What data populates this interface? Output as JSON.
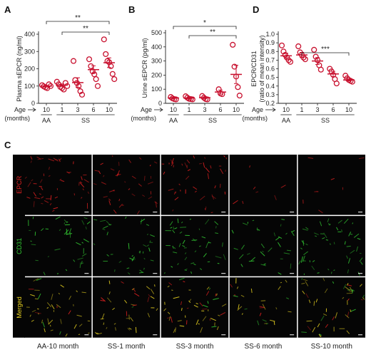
{
  "colors": {
    "marker": "#c8102e",
    "axis": "#222222",
    "epcr": "#e02020",
    "cd31": "#33cc33",
    "merged": "#e6d020",
    "tile_bg": "#050505"
  },
  "panels": {
    "A": "A",
    "B": "B",
    "C": "C",
    "D": "D"
  },
  "age_label": "Age",
  "months_label": "(months)",
  "chart_data": [
    {
      "type": "scatter",
      "panel": "A",
      "ylabel": "Plasma sEPCR (ng/ml)",
      "ylim": [
        0,
        400
      ],
      "yticks": [
        0,
        100,
        200,
        300,
        400
      ],
      "categories": [
        "10",
        "1",
        "3",
        "6",
        "10"
      ],
      "groups": [
        {
          "label": "AA",
          "span": [
            0,
            0
          ]
        },
        {
          "label": "SS",
          "span": [
            1,
            4
          ]
        }
      ],
      "points": [
        [
          105,
          98,
          92,
          88,
          110,
          100
        ],
        [
          125,
          110,
          95,
          88,
          80,
          118,
          100
        ],
        [
          245,
          135,
          118,
          100,
          70,
          50
        ],
        [
          255,
          215,
          185,
          168,
          140,
          100
        ],
        [
          370,
          285,
          245,
          238,
          215,
          170,
          140
        ]
      ],
      "means": [
        100,
        105,
        120,
        195,
        235
      ],
      "sems": [
        4,
        7,
        28,
        22,
        28
      ],
      "significance": [
        {
          "from": 0,
          "to": 4,
          "label": "**"
        },
        {
          "from": 1,
          "to": 4,
          "label": "**"
        }
      ]
    },
    {
      "type": "scatter",
      "panel": "B",
      "ylabel": "Urine sEPCR (pg/ml)",
      "ylim": [
        0,
        500
      ],
      "yticks": [
        0,
        100,
        200,
        300,
        400,
        500
      ],
      "categories": [
        "10",
        "1",
        "3",
        "6",
        "10"
      ],
      "groups": [
        {
          "label": "AA",
          "span": [
            0,
            0
          ]
        },
        {
          "label": "SS",
          "span": [
            1,
            4
          ]
        }
      ],
      "points": [
        [
          45,
          35,
          30,
          28
        ],
        [
          50,
          40,
          32,
          30,
          28
        ],
        [
          52,
          40,
          30,
          28
        ],
        [
          100,
          70,
          65
        ],
        [
          415,
          260,
          190,
          115,
          55
        ]
      ],
      "means": [
        38,
        38,
        40,
        80,
        205
      ],
      "sems": [
        4,
        5,
        6,
        14,
        65
      ],
      "significance": [
        {
          "from": 0,
          "to": 4,
          "label": "*"
        },
        {
          "from": 1,
          "to": 4,
          "label": "**"
        }
      ]
    },
    {
      "type": "scatter",
      "panel": "D",
      "ylabel": "EPCR/CD31",
      "ylabel2": "(ratio of mean intensity)",
      "ylim": [
        0.2,
        1.0
      ],
      "yticks": [
        "0.2",
        "0.3",
        "0.4",
        "0.5",
        "0.6",
        "0.7",
        "0.8",
        "0.9",
        "1.0"
      ],
      "categories": [
        "10",
        "1",
        "3",
        "6",
        "10"
      ],
      "groups": [
        {
          "label": "AA",
          "span": [
            0,
            0
          ]
        },
        {
          "label": "SS",
          "span": [
            1,
            4
          ]
        }
      ],
      "points": [
        [
          0.87,
          0.8,
          0.76,
          0.73,
          0.7,
          0.68
        ],
        [
          0.86,
          0.79,
          0.76,
          0.73,
          0.71
        ],
        [
          0.82,
          0.74,
          0.7,
          0.64,
          0.59
        ],
        [
          0.6,
          0.57,
          0.53,
          0.48,
          0.43
        ],
        [
          0.52,
          0.49,
          0.47,
          0.46,
          0.45
        ]
      ],
      "means": [
        0.75,
        0.76,
        0.69,
        0.54,
        0.47
      ],
      "sems": [
        0.03,
        0.03,
        0.04,
        0.03,
        0.01
      ],
      "significance": [
        {
          "from": 1,
          "to": 4,
          "label": "***"
        }
      ]
    }
  ],
  "micrographs": {
    "rows": [
      "EPCR",
      "CD31",
      "Merged"
    ],
    "columns": [
      "AA-10 month",
      "SS-1 month",
      "SS-3 month",
      "SS-6 month",
      "SS-10 month"
    ]
  }
}
